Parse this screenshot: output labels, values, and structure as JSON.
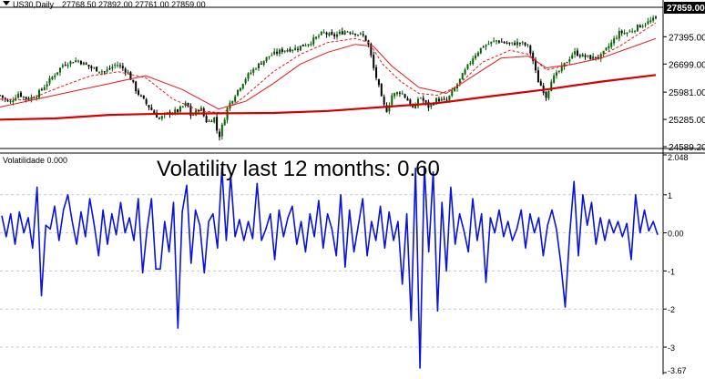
{
  "colors": {
    "background": "#ffffff",
    "axis": "#000000",
    "grid": "#c8c8c8",
    "bull_candle": "#006400",
    "bear_candle": "#000000",
    "ma_fast": "#e41a1c",
    "ma_medium": "#e41a1c",
    "ma_slow": "#d40000",
    "volatility_line": "#0a14d6",
    "price_tag_bg": "#000000",
    "price_tag_text": "#ffffff"
  },
  "icons": {
    "symbol_marker": "triangle-down-icon"
  },
  "chart_data": [
    {
      "type": "candlestick",
      "title": "US30,Daily",
      "ohlc_readout": "27768.50 27892.00 27761.00 27859.00",
      "last_price": "27859.00",
      "ylim": [
        24589.2,
        28100
      ],
      "yticks": [
        "27395.00",
        "26699.00",
        "25981.00",
        "25285.00",
        "24589.20"
      ],
      "yticks_values": [
        27395.0,
        26699.0,
        25981.0,
        25285.0,
        24589.2
      ],
      "candle_count": 252,
      "close_anchors": [
        [
          0,
          25900
        ],
        [
          10,
          25700
        ],
        [
          20,
          25950
        ],
        [
          30,
          25800
        ],
        [
          40,
          25900
        ],
        [
          55,
          26300
        ],
        [
          70,
          26700
        ],
        [
          85,
          26800
        ],
        [
          100,
          26600
        ],
        [
          115,
          26500
        ],
        [
          128,
          26700
        ],
        [
          140,
          26500
        ],
        [
          150,
          26000
        ],
        [
          160,
          25700
        ],
        [
          175,
          25300
        ],
        [
          185,
          25450
        ],
        [
          195,
          25500
        ],
        [
          205,
          25700
        ],
        [
          210,
          25350
        ],
        [
          220,
          25600
        ],
        [
          225,
          25300
        ],
        [
          228,
          25200
        ],
        [
          235,
          25350
        ],
        [
          240,
          24800
        ],
        [
          250,
          25600
        ],
        [
          260,
          26000
        ],
        [
          270,
          26350
        ],
        [
          280,
          26600
        ],
        [
          295,
          26900
        ],
        [
          310,
          27050
        ],
        [
          325,
          27100
        ],
        [
          340,
          27250
        ],
        [
          355,
          27500
        ],
        [
          365,
          27400
        ],
        [
          380,
          27550
        ],
        [
          390,
          27500
        ],
        [
          400,
          27400
        ],
        [
          405,
          27150
        ],
        [
          410,
          26600
        ],
        [
          415,
          26200
        ],
        [
          420,
          25700
        ],
        [
          425,
          25500
        ],
        [
          430,
          25900
        ],
        [
          440,
          26000
        ],
        [
          450,
          25700
        ],
        [
          455,
          25500
        ],
        [
          460,
          25900
        ],
        [
          470,
          25600
        ],
        [
          480,
          25800
        ],
        [
          490,
          25750
        ],
        [
          500,
          26100
        ],
        [
          510,
          26500
        ],
        [
          520,
          26900
        ],
        [
          530,
          27150
        ],
        [
          545,
          27300
        ],
        [
          560,
          27200
        ],
        [
          570,
          27250
        ],
        [
          580,
          27150
        ],
        [
          585,
          26800
        ],
        [
          590,
          26300
        ],
        [
          595,
          26100
        ],
        [
          600,
          25850
        ],
        [
          605,
          26300
        ],
        [
          610,
          26400
        ],
        [
          620,
          26700
        ],
        [
          630,
          27000
        ],
        [
          640,
          26900
        ],
        [
          650,
          26850
        ],
        [
          660,
          26900
        ],
        [
          670,
          27200
        ],
        [
          680,
          27500
        ],
        [
          690,
          27500
        ],
        [
          700,
          27650
        ],
        [
          710,
          27750
        ],
        [
          720,
          27859
        ]
      ],
      "series": [
        {
          "name": "MA fast",
          "kind": "moving_average",
          "x": [
            0,
            30,
            70,
            100,
            130,
            160,
            190,
            220,
            245,
            270,
            300,
            330,
            360,
            390,
            405,
            420,
            440,
            460,
            480,
            500,
            530,
            560,
            580,
            600,
            620,
            650,
            680,
            700,
            720
          ],
          "values": [
            25800,
            25780,
            26150,
            26400,
            26500,
            26350,
            25800,
            25500,
            25450,
            25900,
            26500,
            26950,
            27250,
            27350,
            27250,
            26700,
            26250,
            25950,
            25900,
            26100,
            26750,
            27050,
            26950,
            26550,
            26650,
            26800,
            27150,
            27450,
            27750
          ]
        },
        {
          "name": "MA medium",
          "kind": "moving_average",
          "x": [
            0,
            40,
            80,
            120,
            160,
            200,
            240,
            270,
            300,
            330,
            360,
            390,
            410,
            430,
            460,
            490,
            520,
            550,
            580,
            600,
            630,
            660,
            690,
            720
          ],
          "values": [
            25600,
            25800,
            26000,
            26200,
            26400,
            26050,
            25550,
            25750,
            26200,
            26700,
            27000,
            27200,
            27150,
            26650,
            26100,
            25950,
            26400,
            26850,
            26900,
            26600,
            26700,
            26850,
            27100,
            27350
          ]
        },
        {
          "name": "MA slow",
          "kind": "moving_average",
          "x": [
            0,
            60,
            120,
            180,
            240,
            300,
            360,
            420,
            480,
            540,
            600,
            660,
            720
          ],
          "values": [
            25280,
            25310,
            25400,
            25430,
            25440,
            25450,
            25500,
            25600,
            25700,
            25880,
            26050,
            26250,
            26420
          ]
        }
      ]
    },
    {
      "type": "line",
      "title": "Volatilidade 0.000",
      "annotation": "Volatility last 12 months: 0.60",
      "ylim": [
        -3.67,
        2.048
      ],
      "ytick_labels": [
        "2.048",
        "1",
        "0.00",
        "-1",
        "-2",
        "-3",
        "-3.67"
      ],
      "ytick_values": [
        2.048,
        1,
        0,
        -1,
        -2,
        -3,
        -3.67
      ],
      "grid": true,
      "series": [
        {
          "name": "Volatilidade",
          "values": [
            0.45,
            -0.1,
            0.5,
            -0.3,
            0.55,
            0.0,
            0.4,
            -0.4,
            1.2,
            -1.65,
            0.2,
            0.1,
            0.7,
            -0.2,
            0.6,
            1.0,
            0.3,
            -0.3,
            0.55,
            -0.1,
            0.9,
            0.2,
            -0.6,
            0.6,
            -0.3,
            0.5,
            -0.05,
            0.8,
            0.0,
            0.4,
            -0.2,
            0.9,
            -1.05,
            0.1,
            0.9,
            -0.95,
            -0.95,
            0.3,
            -0.5,
            0.8,
            -2.5,
            0.55,
            1.25,
            -0.8,
            0.6,
            0.2,
            -1.05,
            0.3,
            0.5,
            -0.4,
            1.7,
            -0.2,
            1.5,
            -0.1,
            0.35,
            -0.2,
            0.3,
            -0.15,
            1.3,
            -0.2,
            0.1,
            0.5,
            -0.7,
            0.6,
            -0.1,
            0.4,
            0.7,
            -0.3,
            0.3,
            -0.5,
            0.5,
            -0.1,
            0.85,
            -0.4,
            0.5,
            0.1,
            -0.6,
            1.0,
            -0.9,
            0.6,
            -0.5,
            0.2,
            0.9,
            -0.6,
            0.3,
            -0.2,
            0.7,
            -0.4,
            0.55,
            -0.2,
            0.3,
            -1.35,
            0.5,
            -2.3,
            1.7,
            -3.55,
            1.75,
            -0.5,
            1.6,
            -2.05,
            0.8,
            -1.0,
            1.2,
            -0.3,
            0.5,
            0.05,
            -0.5,
            0.9,
            -0.2,
            0.5,
            -1.3,
            0.4,
            0.0,
            0.6,
            -0.1,
            0.3,
            -0.2,
            0.1,
            0.6,
            -0.4,
            0.5,
            0.0,
            0.4,
            -0.6,
            0.2,
            0.6,
            0.1,
            -0.8,
            -1.95,
            -0.05,
            1.35,
            -0.6,
            1.0,
            0.2,
            0.8,
            -0.3,
            0.4,
            -0.2,
            0.35,
            0.0,
            0.3,
            -0.1,
            0.25,
            -0.7,
            1.0,
            0.0,
            0.6,
            0.05,
            0.3,
            -0.05
          ]
        }
      ]
    }
  ]
}
